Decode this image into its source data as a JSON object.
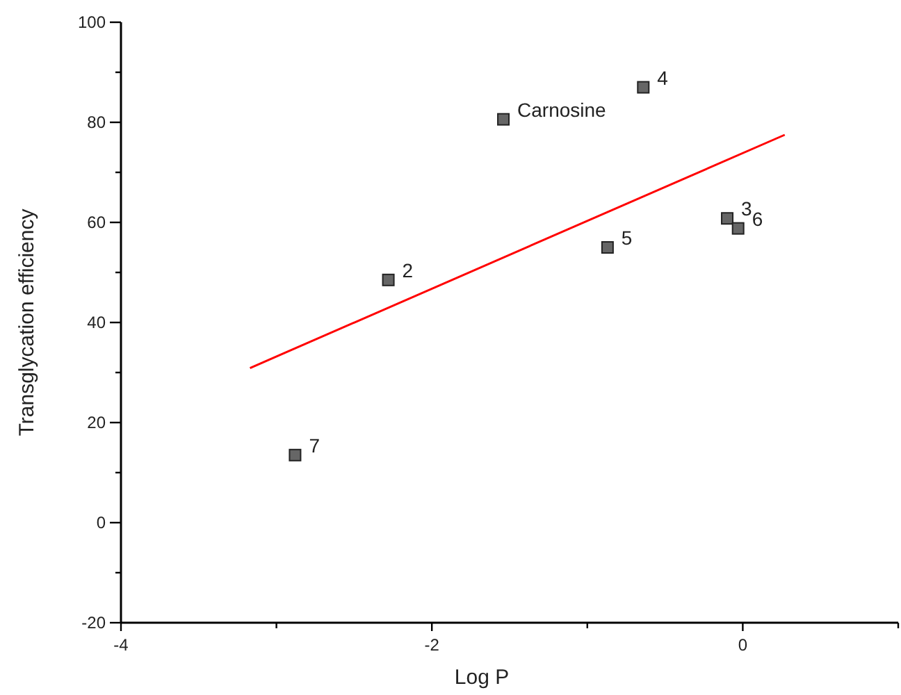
{
  "chart_data": {
    "type": "scatter",
    "xlabel": "Log P",
    "ylabel": "Transglycation efficiency",
    "xlim": [
      -4,
      1
    ],
    "ylim": [
      -20,
      100
    ],
    "xticks": [
      -4,
      {
        "value": -3,
        "label": null
      },
      -2,
      {
        "value": -1,
        "label": null
      },
      0,
      {
        "value": 1,
        "label": null
      }
    ],
    "yticks": [
      -20,
      {
        "value": -10,
        "label": null
      },
      0,
      {
        "value": 10,
        "label": null
      },
      20,
      {
        "value": 30,
        "label": null
      },
      40,
      {
        "value": 50,
        "label": null
      },
      60,
      {
        "value": 70,
        "label": null
      },
      80,
      {
        "value": 90,
        "label": null
      },
      100
    ],
    "grid": false,
    "series": [
      {
        "color": "#666666",
        "marker": "square",
        "x": [
          -2.88,
          -2.28,
          -1.54,
          -0.64,
          -0.87,
          -0.1,
          -0.03
        ],
        "values": [
          13.5,
          48.5,
          80.6,
          87,
          55,
          60.8,
          58.8
        ]
      },
      {
        "type": "line",
        "color": "#ff0000",
        "marker": "none",
        "line_style": "solid",
        "x": [
          -3.17,
          0.27
        ],
        "values": [
          30.9,
          77.5
        ]
      }
    ],
    "annotations": [
      {
        "text": "7",
        "x": -2.88,
        "y": 13.5
      },
      {
        "text": "2",
        "x": -2.28,
        "y": 48.5
      },
      {
        "text": "Carnosine",
        "x": -1.54,
        "y": 80.6
      },
      {
        "text": "4",
        "x": -0.64,
        "y": 87
      },
      {
        "text": "5",
        "x": -0.87,
        "y": 55
      },
      {
        "text": "3",
        "x": -0.1,
        "y": 60.8
      },
      {
        "text": "6",
        "x": -0.03,
        "y": 58.8
      }
    ]
  }
}
